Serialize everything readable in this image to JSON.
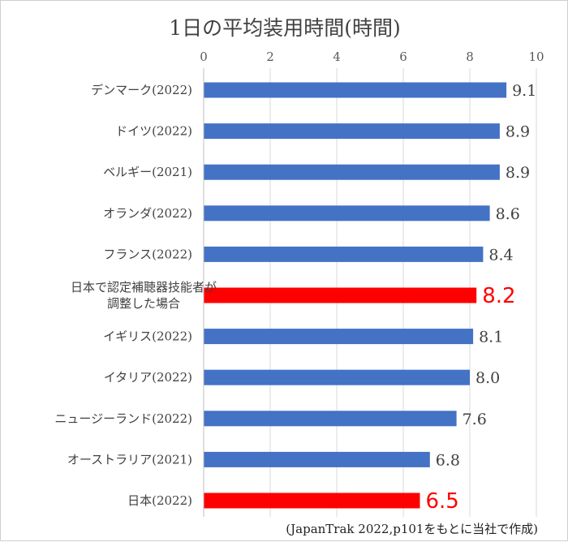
{
  "chart_data": {
    "type": "bar",
    "orientation": "horizontal",
    "title": "1日の平均装用時間(時間)",
    "xlabel": "",
    "ylabel": "",
    "xlim": [
      0,
      10
    ],
    "ticks": [
      0,
      2,
      4,
      6,
      8,
      10
    ],
    "grid": true,
    "legend": "none",
    "categories": [
      [
        "デンマーク(2022)"
      ],
      [
        "ドイツ(2022)"
      ],
      [
        "ベルギー(2021)"
      ],
      [
        "オランダ(2022)"
      ],
      [
        "フランス(2022)"
      ],
      [
        "日本で認定補聴器技能者が",
        "調整した場合"
      ],
      [
        "イギリス(2022)"
      ],
      [
        "イタリア(2022)"
      ],
      [
        "ニュージーランド(2022)"
      ],
      [
        "オーストラリア(2021)"
      ],
      [
        "日本(2022)"
      ]
    ],
    "values": [
      9.1,
      8.9,
      8.9,
      8.6,
      8.4,
      8.2,
      8.1,
      8.0,
      7.6,
      6.8,
      6.5
    ],
    "value_labels": [
      "9.1",
      "8.9",
      "8.9",
      "8.6",
      "8.4",
      "8.2",
      "8.1",
      "8.0",
      "7.6",
      "6.8",
      "6.5"
    ],
    "highlight": [
      false,
      false,
      false,
      false,
      false,
      true,
      false,
      false,
      false,
      false,
      true
    ],
    "colors": {
      "bar": "#4472c4",
      "highlight": "#ff0000",
      "grid": "#d9d9d9"
    },
    "source": "(JapanTrak 2022,p101をもとに当社で作成)"
  }
}
